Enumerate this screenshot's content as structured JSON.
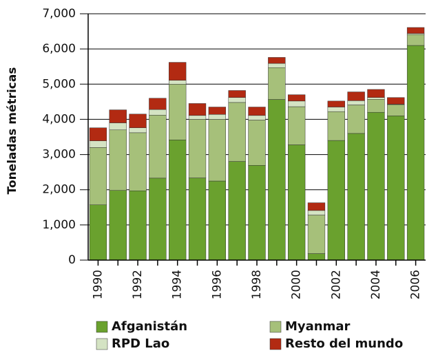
{
  "chart_data": {
    "type": "stacked_bar",
    "y_label": "Toneladas métricas",
    "categories": [
      "1990",
      null,
      "1992",
      null,
      "1994",
      null,
      "1996",
      null,
      "1998",
      null,
      "2000",
      null,
      "2002",
      null,
      "2004",
      null,
      "2006"
    ],
    "series": [
      {
        "name": "Afganistán",
        "color": "#6aa12e",
        "values": [
          1570,
          1980,
          1970,
          2330,
          3416,
          2335,
          2248,
          2804,
          2693,
          4565,
          3276,
          185,
          3400,
          3600,
          4200,
          4100,
          6100
        ]
      },
      {
        "name": "Myanmar",
        "color": "#a6c07a",
        "values": [
          1630,
          1720,
          1650,
          1790,
          1584,
          1665,
          1752,
          1676,
          1287,
          905,
          1084,
          1095,
          820,
          810,
          370,
          320,
          310
        ]
      },
      {
        "name": "RPD Lao",
        "color": "#d4e3c3",
        "values": [
          190,
          200,
          140,
          160,
          110,
          110,
          140,
          140,
          130,
          120,
          160,
          130,
          130,
          120,
          50,
          10,
          30
        ]
      },
      {
        "name": "Resto del mundo",
        "color": "#b22a12",
        "values": [
          370,
          370,
          390,
          320,
          510,
          340,
          210,
          200,
          240,
          170,
          180,
          220,
          170,
          250,
          230,
          190,
          170
        ]
      }
    ],
    "ylim": [
      0,
      7000
    ],
    "yticks": [
      0,
      {
        "value": 1000,
        "label": "1,000"
      },
      {
        "value": 2000,
        "label": "2,000"
      },
      {
        "value": 3000,
        "label": "3,000"
      },
      {
        "value": 4000,
        "label": "4,000"
      },
      {
        "value": 5000,
        "label": "5,000"
      },
      {
        "value": 6000,
        "label": "6,000"
      },
      {
        "value": 7000,
        "label": "7,000"
      }
    ],
    "grid": true
  }
}
